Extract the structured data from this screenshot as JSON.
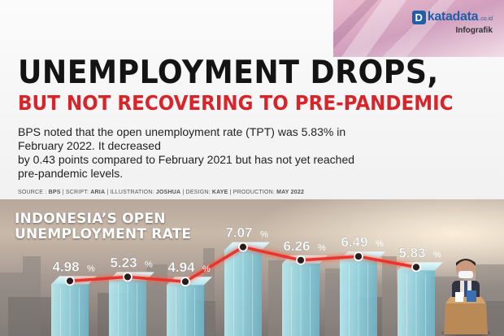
{
  "brand": {
    "logo_letter": "D",
    "logo_text": "katadata",
    "logo_suffix": ".co.id",
    "section": "Infografik"
  },
  "headline": {
    "line1": "UNEMPLOYMENT DROPS,",
    "line2": "BUT NOT RECOVERING TO PRE-PANDEMIC"
  },
  "description": {
    "line1": "BPS noted that the open unemployment rate (TPT) was 5.83% in",
    "line2": "February 2022. It decreased",
    "line3": "by 0.43 points compared to February 2021 but has not yet reached",
    "line4": "pre-pandemic levels."
  },
  "credits": {
    "source_label": "SOURCE : ",
    "source": "BPS",
    "script_label": " | SCRIPT: ",
    "script": "ARIA",
    "illustration_label": " | ILLUSTRATION: ",
    "illustration": "JOSHUA",
    "design_label": "  | DESIGN: ",
    "design": "KAYE",
    "production_label": " | PRODUCTION: ",
    "production": "MAY 2022"
  },
  "colors": {
    "accent_red": "#d9252a",
    "bar_cyan": "#8fd6e4",
    "line_red": "#e8342e",
    "logo_blue": "#1f5fa8"
  },
  "chart_data": {
    "type": "bar",
    "title": "INDONESIA’S OPEN UNEMPLOYMENT RATE",
    "unit": "%",
    "categories": [],
    "values": [
      4.98,
      5.23,
      4.94,
      7.07,
      6.26,
      6.49,
      5.83
    ],
    "labels": [
      "4.98",
      "5.23",
      "4.94",
      "7.07",
      "6.26",
      "6.49",
      "5.83"
    ],
    "overlay": "line",
    "ylim": [
      4.0,
      7.5
    ],
    "grid": false,
    "legend": "none"
  }
}
